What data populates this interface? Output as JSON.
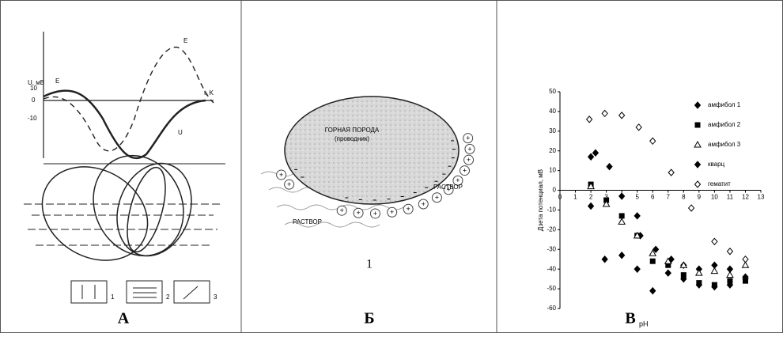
{
  "panel_a": {
    "y_label": "U, мВ",
    "e_label": "E",
    "ticks": [
      "10",
      "0",
      "-10"
    ],
    "curve_e": "E",
    "curve_u": "U",
    "t_label": "t, K",
    "legend": [
      "1",
      "2",
      "3"
    ],
    "caption": "А"
  },
  "panel_b": {
    "rock": "ГОРНАЯ ПОРОДА",
    "rock_note": "(проводник)",
    "solution_right": "РАСТВОР",
    "solution_bottom": "РАСТВОР",
    "number": "1",
    "caption": "Б"
  },
  "caption_c": "В",
  "caption_c_sub": "pH",
  "chart_data": {
    "type": "scatter",
    "y_label": "Дзета потенциал, мВ",
    "xlim": [
      0,
      13
    ],
    "ylim": [
      -60,
      50
    ],
    "xticks": [
      0,
      1,
      2,
      3,
      4,
      5,
      6,
      7,
      8,
      9,
      10,
      11,
      12,
      13
    ],
    "yticks": [
      -60,
      -50,
      -40,
      -30,
      -20,
      -10,
      0,
      10,
      20,
      30,
      40,
      50
    ],
    "series": [
      {
        "name": "амфибол 1",
        "marker": "diamond",
        "filled": true,
        "color": "#000000",
        "x": [
          2,
          2.3,
          3.2,
          4,
          5,
          5.2,
          6.2,
          7.2,
          8,
          9,
          10,
          11,
          12
        ],
        "values": [
          17,
          19,
          12,
          -3,
          -13,
          -23,
          -30,
          -35,
          -38,
          -40,
          -38,
          -40,
          -44
        ]
      },
      {
        "name": "амфибол 2",
        "marker": "square",
        "filled": true,
        "color": "#000000",
        "x": [
          2,
          3,
          4,
          5,
          6,
          7,
          8,
          9,
          10,
          11,
          12
        ],
        "values": [
          3,
          -5,
          -13,
          -23,
          -36,
          -38,
          -43,
          -47,
          -48,
          -46,
          -46
        ]
      },
      {
        "name": "амфибол 3",
        "marker": "triangle",
        "filled": false,
        "color": "#000000",
        "x": [
          2,
          3,
          4,
          5,
          6,
          7,
          8,
          9,
          10,
          11,
          12
        ],
        "values": [
          2,
          -7,
          -16,
          -23,
          -32,
          -36,
          -38,
          -42,
          -41,
          -43,
          -38
        ]
      },
      {
        "name": "кварц",
        "marker": "diamond",
        "filled": true,
        "color": "#000000",
        "x": [
          2,
          2.9,
          4,
          5,
          6,
          7,
          8,
          9,
          10,
          11,
          12
        ],
        "values": [
          -8,
          -35,
          -33,
          -40,
          -51,
          -42,
          -45,
          -48,
          -49,
          -48,
          -45
        ]
      },
      {
        "name": "гематит",
        "marker": "diamond",
        "filled": false,
        "color": "#000000",
        "x": [
          1.9,
          2.9,
          4,
          5.1,
          6,
          7.2,
          8.5,
          10,
          11,
          12
        ],
        "values": [
          36,
          39,
          38,
          32,
          25,
          9,
          -9,
          -26,
          -31,
          -35
        ]
      }
    ]
  }
}
